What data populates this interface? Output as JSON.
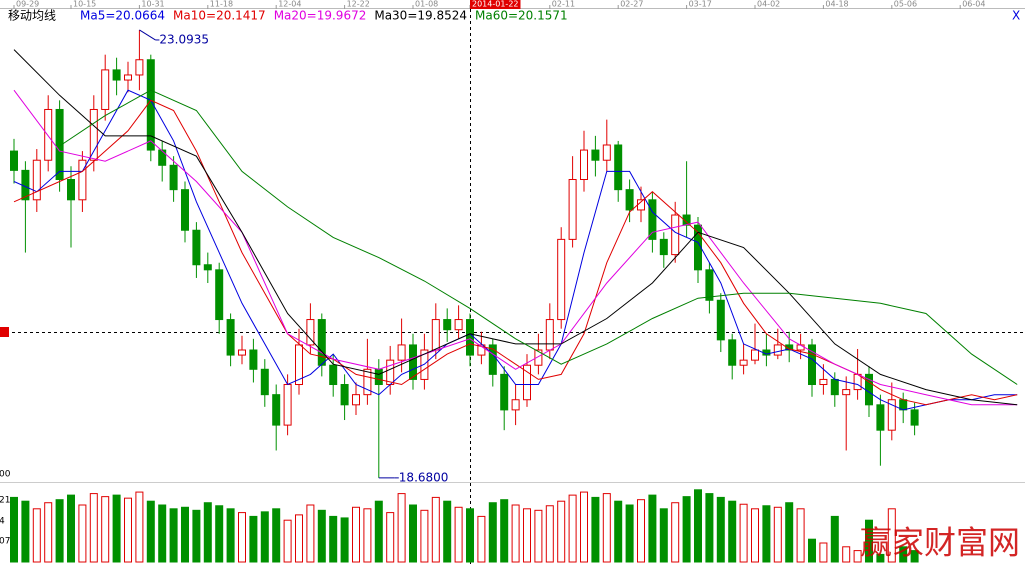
{
  "chart_data": [
    {
      "type": "candlestick",
      "indicator": "移动均线",
      "close_label": "X",
      "ylim": [
        18.6,
        23.3
      ],
      "up_color": "#e00000",
      "down_color": "#009000",
      "xticks": [
        {
          "value": 0,
          "label": "09-29"
        },
        {
          "value": 5,
          "label": "10-15"
        },
        {
          "value": 11,
          "label": "10-31"
        },
        {
          "value": 17,
          "label": "11-18"
        },
        {
          "value": 23,
          "label": "12-04"
        },
        {
          "value": 29,
          "label": "12-22"
        },
        {
          "value": 35,
          "label": "01-08"
        },
        {
          "value": 40,
          "label": "2014-01-22"
        },
        {
          "value": 47,
          "label": "02-11"
        },
        {
          "value": 53,
          "label": "02-27"
        },
        {
          "value": 59,
          "label": "03-17"
        },
        {
          "value": 65,
          "label": "04-02"
        },
        {
          "value": 71,
          "label": "04-18"
        },
        {
          "value": 77,
          "label": "05-06"
        },
        {
          "value": 83,
          "label": "06-04"
        }
      ],
      "open": [
        21.9,
        21.71,
        21.42,
        21.81,
        22.31,
        21.62,
        21.42,
        21.81,
        22.31,
        22.7,
        22.6,
        22.65,
        22.8,
        21.91,
        21.76,
        21.52,
        21.12,
        20.78,
        20.73,
        20.24,
        19.89,
        19.94,
        19.75,
        19.5,
        19.2,
        19.6,
        19.99,
        20.24,
        19.79,
        19.6,
        19.4,
        19.5,
        19.75,
        19.6,
        19.84,
        19.99,
        19.65,
        19.94,
        20.24,
        20.14,
        20.24,
        19.89,
        19.99,
        19.7,
        19.35,
        19.45,
        19.79,
        19.94,
        20.24,
        21.03,
        21.62,
        21.91,
        21.81,
        21.96,
        21.52,
        21.32,
        21.42,
        21.03,
        20.88,
        21.27,
        21.17,
        20.73,
        20.43,
        20.04,
        19.79,
        19.84,
        19.94,
        19.89,
        19.99,
        19.94,
        19.99,
        19.6,
        19.65,
        19.5,
        19.55,
        19.7,
        19.4,
        19.15,
        19.45,
        19.35
      ],
      "high": [
        22.02,
        21.8,
        21.92,
        22.45,
        22.4,
        21.75,
        21.9,
        22.45,
        22.85,
        22.82,
        22.78,
        23.0935,
        22.85,
        22.0,
        21.85,
        21.6,
        21.2,
        20.9,
        20.8,
        20.3,
        20.08,
        20.05,
        19.85,
        19.6,
        19.7,
        20.15,
        20.4,
        20.3,
        19.9,
        19.7,
        19.62,
        20.05,
        19.85,
        19.98,
        20.25,
        20.1,
        20.1,
        20.4,
        20.35,
        20.38,
        20.3,
        20.12,
        20.05,
        19.78,
        19.6,
        19.9,
        20.1,
        20.4,
        21.15,
        21.85,
        22.1,
        22.05,
        22.21,
        22.0,
        21.62,
        21.55,
        21.5,
        21.1,
        21.4,
        21.8,
        21.25,
        20.8,
        20.5,
        20.1,
        20.0,
        20.2,
        20.1,
        20.15,
        20.12,
        20.1,
        20.05,
        19.8,
        19.72,
        19.68,
        19.95,
        19.78,
        19.5,
        19.62,
        19.52,
        19.42
      ],
      "low": [
        21.58,
        20.9,
        21.3,
        21.7,
        21.5,
        20.95,
        21.3,
        21.7,
        22.2,
        22.45,
        22.48,
        22.5,
        21.8,
        21.6,
        21.4,
        21.0,
        20.65,
        20.6,
        20.1,
        19.78,
        19.8,
        19.62,
        19.38,
        18.95,
        19.1,
        19.5,
        19.9,
        19.68,
        19.48,
        19.25,
        19.3,
        19.4,
        18.68,
        19.5,
        19.72,
        19.55,
        19.55,
        19.85,
        20.02,
        20.05,
        19.78,
        19.8,
        19.58,
        19.15,
        19.2,
        19.38,
        19.7,
        19.85,
        20.15,
        20.95,
        21.5,
        21.65,
        21.7,
        21.4,
        21.2,
        21.2,
        20.9,
        20.75,
        20.8,
        21.05,
        20.6,
        20.3,
        19.92,
        19.65,
        19.7,
        19.8,
        19.78,
        19.85,
        19.82,
        19.85,
        19.48,
        19.5,
        19.38,
        18.95,
        19.45,
        19.28,
        18.8,
        19.05,
        19.22,
        19.1
      ],
      "close": [
        21.71,
        21.42,
        21.81,
        22.31,
        21.62,
        21.42,
        21.81,
        22.31,
        22.7,
        22.6,
        22.65,
        22.8,
        21.91,
        21.76,
        21.52,
        21.12,
        20.78,
        20.73,
        20.24,
        19.89,
        19.94,
        19.75,
        19.5,
        19.2,
        19.6,
        19.99,
        20.24,
        19.79,
        19.6,
        19.4,
        19.5,
        19.75,
        19.6,
        19.84,
        19.99,
        19.65,
        19.94,
        20.24,
        20.14,
        20.24,
        19.89,
        19.99,
        19.7,
        19.35,
        19.45,
        19.79,
        19.94,
        20.24,
        21.03,
        21.62,
        21.91,
        21.81,
        21.96,
        21.52,
        21.32,
        21.42,
        21.03,
        20.88,
        21.27,
        21.17,
        20.73,
        20.43,
        20.04,
        19.79,
        19.84,
        19.94,
        19.89,
        19.99,
        19.94,
        19.99,
        19.6,
        19.65,
        19.5,
        19.55,
        19.7,
        19.4,
        19.15,
        19.45,
        19.35,
        19.2
      ],
      "annotations": [
        {
          "value": 23.0935,
          "label": "23.0935"
        },
        {
          "value": 18.68,
          "label": "18.6800"
        }
      ],
      "series": [
        {
          "name": "Ma5=20.0664",
          "color": "#0000e0",
          "x": [
            0,
            2,
            4,
            6,
            8,
            10,
            12,
            14,
            16,
            18,
            20,
            22,
            24,
            26,
            28,
            30,
            32,
            34,
            36,
            38,
            40,
            42,
            44,
            46,
            48,
            50,
            52,
            54,
            56,
            58,
            60,
            62,
            64,
            66,
            68,
            70,
            72,
            74,
            76,
            78,
            80,
            82,
            84,
            86,
            88
          ],
          "values": [
            21.6,
            21.5,
            21.7,
            21.7,
            22.1,
            22.5,
            22.4,
            22.0,
            21.4,
            20.9,
            20.4,
            20.0,
            19.6,
            19.7,
            19.9,
            19.6,
            19.5,
            19.7,
            19.8,
            20.0,
            20.1,
            19.9,
            19.6,
            19.6,
            20.0,
            20.9,
            21.7,
            21.7,
            21.3,
            21.1,
            21.0,
            20.6,
            20.0,
            19.9,
            19.95,
            19.85,
            19.65,
            19.6,
            19.45,
            19.35,
            19.4,
            19.45,
            19.45,
            19.5,
            19.5
          ]
        },
        {
          "name": "Ma10=20.1417",
          "color": "#e00000",
          "x": [
            0,
            2,
            4,
            6,
            8,
            10,
            12,
            14,
            16,
            18,
            20,
            22,
            24,
            26,
            28,
            30,
            32,
            34,
            36,
            38,
            40,
            42,
            44,
            46,
            48,
            50,
            52,
            54,
            56,
            58,
            60,
            62,
            64,
            66,
            68,
            70,
            72,
            74,
            76,
            78,
            80,
            82,
            84,
            86,
            88
          ],
          "values": [
            21.4,
            21.5,
            21.6,
            21.7,
            21.9,
            22.1,
            22.4,
            22.3,
            21.9,
            21.4,
            20.9,
            20.5,
            20.1,
            19.9,
            19.85,
            19.7,
            19.65,
            19.6,
            19.75,
            19.9,
            20.0,
            19.95,
            19.8,
            19.65,
            19.7,
            20.1,
            20.8,
            21.3,
            21.5,
            21.3,
            21.1,
            20.8,
            20.4,
            20.1,
            19.95,
            19.9,
            19.8,
            19.7,
            19.55,
            19.45,
            19.4,
            19.45,
            19.5,
            19.45,
            19.5
          ]
        },
        {
          "name": "Ma20=19.9672",
          "color": "#e000e0",
          "x": [
            0,
            4,
            8,
            12,
            16,
            20,
            24,
            28,
            32,
            36,
            40,
            44,
            48,
            52,
            56,
            60,
            64,
            68,
            72,
            76,
            80,
            84,
            88
          ],
          "values": [
            22.5,
            21.9,
            21.8,
            22.0,
            21.6,
            21.1,
            20.1,
            19.85,
            19.75,
            19.9,
            20.05,
            19.75,
            20.0,
            20.6,
            21.1,
            21.2,
            20.6,
            20.05,
            19.8,
            19.6,
            19.5,
            19.4,
            19.4
          ]
        },
        {
          "name": "Ma30=19.8524",
          "color": "#000000",
          "x": [
            0,
            4,
            8,
            12,
            16,
            20,
            24,
            28,
            32,
            36,
            40,
            44,
            48,
            52,
            56,
            60,
            64,
            68,
            72,
            76,
            80,
            84,
            88
          ],
          "values": [
            22.9,
            22.45,
            22.05,
            22.05,
            21.85,
            21.1,
            20.3,
            19.8,
            19.7,
            19.9,
            20.1,
            20.0,
            20.0,
            20.25,
            20.6,
            21.1,
            20.95,
            20.5,
            20.0,
            19.7,
            19.55,
            19.45,
            19.4
          ]
        },
        {
          "name": "Ma60=20.1571",
          "color": "#008000",
          "x": [
            4,
            8,
            12,
            16,
            20,
            24,
            28,
            32,
            36,
            40,
            44,
            48,
            52,
            56,
            60,
            64,
            68,
            72,
            76,
            80,
            84,
            88
          ],
          "values": [
            21.95,
            22.25,
            22.5,
            22.3,
            21.7,
            21.35,
            21.05,
            20.85,
            20.62,
            20.35,
            20.05,
            19.8,
            20.0,
            20.25,
            20.45,
            20.5,
            20.5,
            20.45,
            20.4,
            20.3,
            19.9,
            19.6
          ]
        }
      ]
    },
    {
      "type": "bar",
      "axis_labels": [
        "00",
        "21",
        "4",
        "07"
      ],
      "ylim": [
        0,
        100
      ],
      "values": [
        85,
        80,
        70,
        78,
        82,
        88,
        75,
        90,
        86,
        88,
        84,
        92,
        80,
        75,
        70,
        72,
        68,
        78,
        74,
        70,
        65,
        60,
        66,
        70,
        55,
        62,
        75,
        68,
        60,
        58,
        72,
        70,
        80,
        65,
        90,
        75,
        68,
        85,
        80,
        72,
        70,
        60,
        78,
        82,
        75,
        70,
        68,
        74,
        80,
        88,
        92,
        85,
        90,
        80,
        75,
        82,
        88,
        70,
        78,
        86,
        95,
        90,
        85,
        80,
        76,
        70,
        74,
        72,
        78,
        70,
        30,
        25,
        60,
        20,
        15,
        55,
        10,
        70,
        20,
        15
      ]
    }
  ],
  "watermark": "赢家财富网"
}
